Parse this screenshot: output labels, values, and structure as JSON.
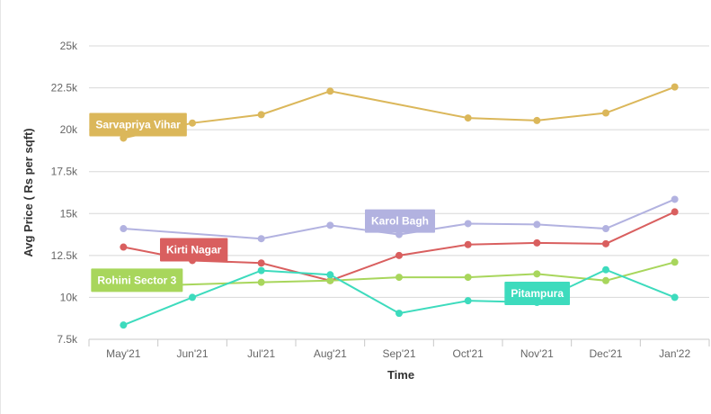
{
  "chart_data": {
    "type": "line",
    "categories": [
      "May'21",
      "Jun'21",
      "Jul'21",
      "Aug'21",
      "Sep'21",
      "Oct'21",
      "Nov'21",
      "Dec'21",
      "Jan'22"
    ],
    "ylabel": "Avg Price ( Rs per sqft)",
    "xlabel": "Time",
    "ylim": [
      7500,
      25000
    ],
    "yticks": [
      7500,
      10000,
      12500,
      15000,
      17500,
      20000,
      22500,
      25000
    ],
    "ytick_labels": [
      "7.5k",
      "10k",
      "12.5k",
      "15k",
      "17.5k",
      "20k",
      "22.5k",
      "25k"
    ],
    "grid": "horizontal",
    "series": [
      {
        "name": "Sarvapriya Vihar",
        "color": "#dbb75a",
        "values": [
          19500,
          20400,
          20900,
          22300,
          null,
          20700,
          20550,
          21000,
          22550
        ]
      },
      {
        "name": "Karol Bagh",
        "color": "#b2b2e0",
        "values": [
          14100,
          null,
          13500,
          14300,
          13750,
          14400,
          14350,
          14100,
          15850
        ]
      },
      {
        "name": "Kirti Nagar",
        "color": "#d95f5f",
        "values": [
          13000,
          12200,
          12050,
          11000,
          12500,
          13150,
          13250,
          13200,
          15100
        ]
      },
      {
        "name": "Rohini Sector 3",
        "color": "#a8d65c",
        "values": [
          10650,
          null,
          10900,
          11000,
          11200,
          11200,
          11400,
          11000,
          12100
        ]
      },
      {
        "name": "Pitampura",
        "color": "#3ddbbd",
        "values": [
          8350,
          10000,
          11600,
          11350,
          9050,
          9800,
          9700,
          11650,
          10000
        ]
      }
    ]
  }
}
